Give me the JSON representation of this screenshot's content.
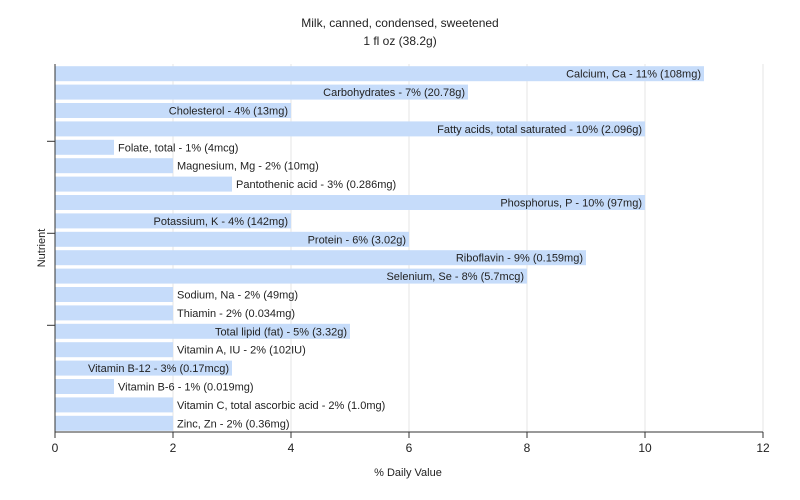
{
  "chart_data": {
    "type": "bar",
    "orientation": "horizontal",
    "title": "Milk, canned, condensed, sweetened",
    "subtitle": "1 fl oz (38.2g)",
    "xlabel": "% Daily Value",
    "ylabel": "Nutrient",
    "xlim": [
      0,
      12
    ],
    "xticks": [
      0,
      2,
      4,
      6,
      8,
      10,
      12
    ],
    "grid": true,
    "bar_color": "#c6dcfa",
    "categories": [
      "Calcium, Ca",
      "Carbohydrates",
      "Cholesterol",
      "Fatty acids, total saturated",
      "Folate, total",
      "Magnesium, Mg",
      "Pantothenic acid",
      "Phosphorus, P",
      "Potassium, K",
      "Protein",
      "Riboflavin",
      "Selenium, Se",
      "Sodium, Na",
      "Thiamin",
      "Total lipid (fat)",
      "Vitamin A, IU",
      "Vitamin B-12",
      "Vitamin B-6",
      "Vitamin C, total ascorbic acid",
      "Zinc, Zn"
    ],
    "values": [
      11,
      7,
      4,
      10,
      1,
      2,
      3,
      10,
      4,
      6,
      9,
      8,
      2,
      2,
      5,
      2,
      3,
      1,
      2,
      2
    ],
    "labels": [
      "Calcium, Ca - 11% (108mg)",
      "Carbohydrates - 7% (20.78g)",
      "Cholesterol - 4% (13mg)",
      "Fatty acids, total saturated - 10% (2.096g)",
      "Folate, total - 1% (4mcg)",
      "Magnesium, Mg - 2% (10mg)",
      "Pantothenic acid - 3% (0.286mg)",
      "Phosphorus, P - 10% (97mg)",
      "Potassium, K - 4% (142mg)",
      "Protein - 6% (3.02g)",
      "Riboflavin - 9% (0.159mg)",
      "Selenium, Se - 8% (5.7mcg)",
      "Sodium, Na - 2% (49mg)",
      "Thiamin - 2% (0.034mg)",
      "Total lipid (fat) - 5% (3.32g)",
      "Vitamin A, IU - 2% (102IU)",
      "Vitamin B-12 - 3% (0.17mcg)",
      "Vitamin B-6 - 1% (0.019mg)",
      "Vitamin C, total ascorbic acid - 2% (1.0mg)",
      "Zinc, Zn - 2% (0.36mg)"
    ]
  }
}
